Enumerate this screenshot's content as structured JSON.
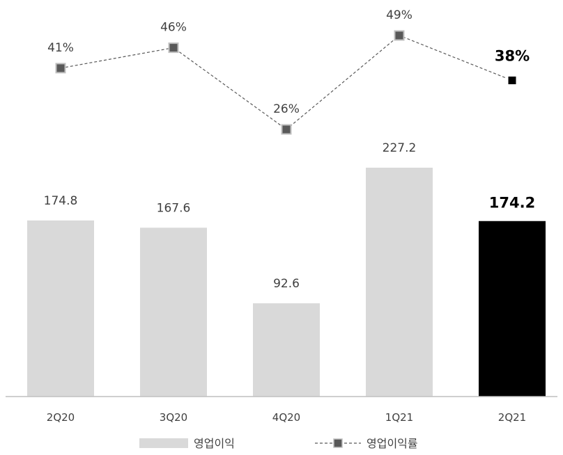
{
  "chart_data": {
    "type": "bar",
    "categories": [
      "2Q20",
      "3Q20",
      "4Q20",
      "1Q21",
      "2Q21"
    ],
    "series": [
      {
        "name": "영업이익",
        "type": "bar",
        "values": [
          174.8,
          167.6,
          92.6,
          227.2,
          174.2
        ],
        "labels": [
          "174.8",
          "167.6",
          "92.6",
          "227.2",
          "174.2"
        ]
      },
      {
        "name": "영업이익률",
        "type": "line",
        "values": [
          41,
          46,
          26,
          49,
          38
        ],
        "labels": [
          "41%",
          "46%",
          "26%",
          "49%",
          "38%"
        ]
      }
    ],
    "highlight_index": 4,
    "colors": {
      "bar": "#d9d9d9",
      "bar_highlight": "#000000",
      "marker": "#595959",
      "marker_highlight": "#000000",
      "line": "#595959",
      "axis": "#bfbfbf"
    },
    "bar_ylim": [
      0,
      227.2
    ],
    "line_ylim": [
      26,
      49
    ],
    "legend_position": "bottom",
    "grid": false
  }
}
